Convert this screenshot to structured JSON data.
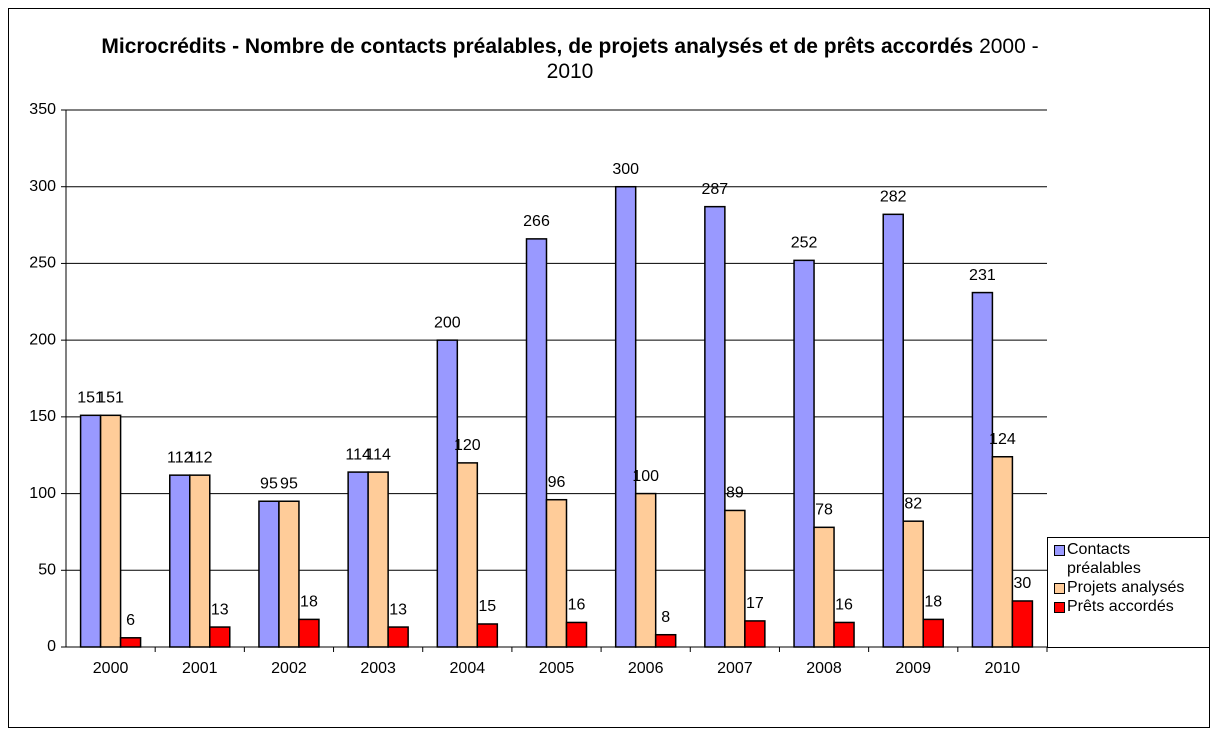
{
  "chart_data": {
    "type": "bar",
    "title": "Microcrédits - Nombre de contacts préalables, de projets analysés et de prêts accordés",
    "subtitle": "2000 - 2010",
    "categories": [
      "2000",
      "2001",
      "2002",
      "2003",
      "2004",
      "2005",
      "2006",
      "2007",
      "2008",
      "2009",
      "2010"
    ],
    "series": [
      {
        "name": "Contacts préalables",
        "color": "#9999ff",
        "values": [
          151,
          112,
          95,
          114,
          200,
          266,
          300,
          287,
          252,
          282,
          231
        ]
      },
      {
        "name": "Projets analysés",
        "color": "#ffcc99",
        "values": [
          151,
          112,
          95,
          114,
          120,
          96,
          100,
          89,
          78,
          82,
          124
        ]
      },
      {
        "name": "Prêts accordés",
        "color": "#ff0000",
        "values": [
          6,
          13,
          18,
          13,
          15,
          16,
          8,
          17,
          16,
          18,
          30
        ]
      }
    ],
    "ylim": [
      0,
      350
    ],
    "yticks": [
      0,
      50,
      100,
      150,
      200,
      250,
      300,
      350
    ],
    "grid": true,
    "legend": "right"
  }
}
